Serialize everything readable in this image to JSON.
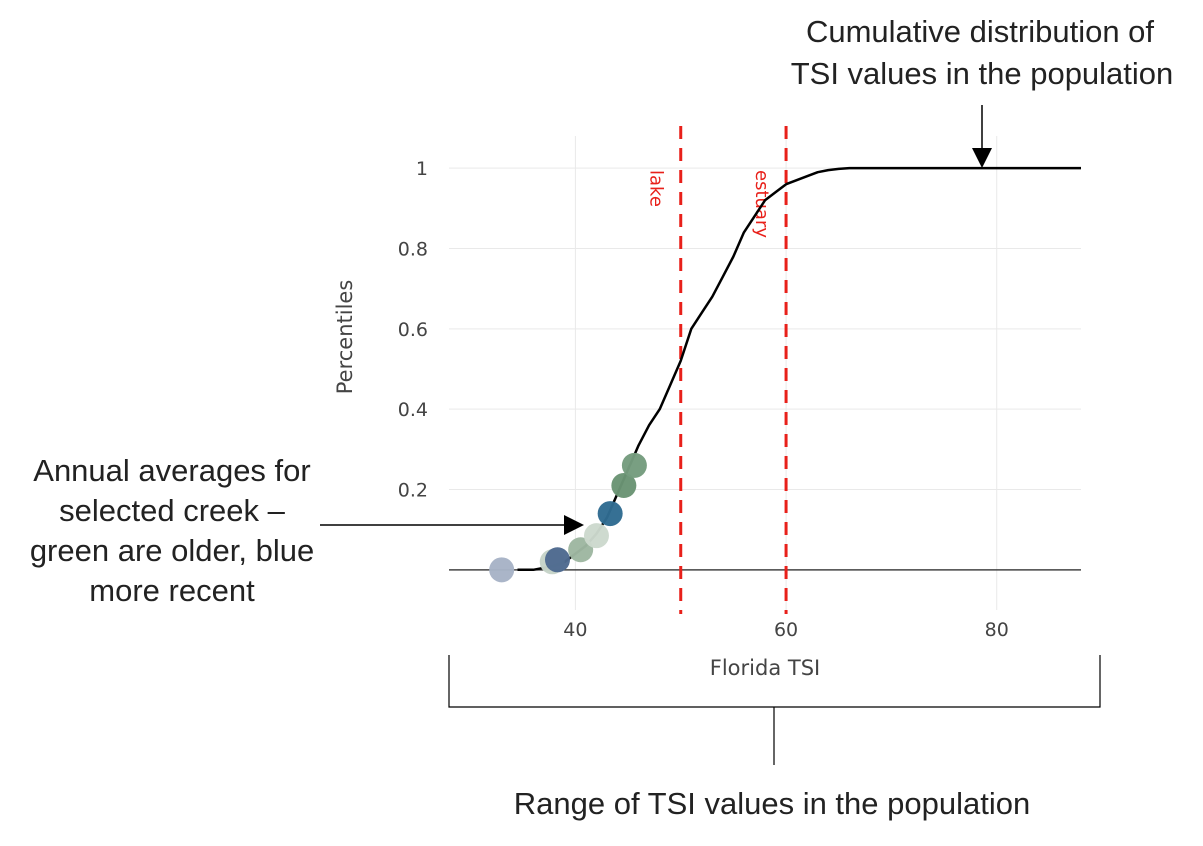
{
  "chart_data": {
    "type": "line",
    "title": "",
    "xlabel": "Florida TSI",
    "ylabel": "Percentiles",
    "xlim": [
      28,
      88
    ],
    "ylim": [
      -0.1,
      1.08
    ],
    "x_ticks": [
      {
        "value": 40,
        "label": "40"
      },
      {
        "value": 60,
        "label": "60"
      },
      {
        "value": 80,
        "label": "80"
      }
    ],
    "y_ticks": [
      {
        "value": 0.2,
        "label": "0.2"
      },
      {
        "value": 0.4,
        "label": "0.4"
      },
      {
        "value": 0.6,
        "label": "0.6"
      },
      {
        "value": 0.8,
        "label": "0.8"
      },
      {
        "value": 1,
        "label": "1"
      }
    ],
    "grid": true,
    "zero_line": true,
    "series": [
      {
        "kind": "line",
        "color": "#000000",
        "x": [
          34.5,
          36,
          37,
          38,
          39,
          40,
          41,
          42,
          43,
          44,
          45,
          46,
          47,
          48,
          49,
          50,
          51,
          52,
          53,
          54,
          55,
          56,
          57,
          58,
          59,
          60,
          61,
          62,
          63,
          64,
          65,
          66,
          70,
          75,
          80,
          85,
          88
        ],
        "y": [
          0.0,
          0.0,
          0.005,
          0.01,
          0.02,
          0.04,
          0.06,
          0.09,
          0.13,
          0.19,
          0.25,
          0.31,
          0.36,
          0.4,
          0.46,
          0.52,
          0.6,
          0.64,
          0.68,
          0.73,
          0.78,
          0.84,
          0.88,
          0.92,
          0.94,
          0.96,
          0.97,
          0.98,
          0.99,
          0.995,
          0.998,
          1.0,
          1.0,
          1.0,
          1.0,
          1.0,
          1.0
        ]
      },
      {
        "kind": "scatter",
        "note_colors": "green are older, blue more recent",
        "points": [
          {
            "x": 33.0,
            "y": 0.0,
            "color": "#a7b3c6"
          },
          {
            "x": 37.8,
            "y": 0.02,
            "color": "#c6d4c8"
          },
          {
            "x": 38.3,
            "y": 0.025,
            "color": "#4e6a8f"
          },
          {
            "x": 40.5,
            "y": 0.05,
            "color": "#9eb7a1"
          },
          {
            "x": 42.0,
            "y": 0.085,
            "color": "#ccd9cd"
          },
          {
            "x": 43.3,
            "y": 0.14,
            "color": "#2f6b91"
          },
          {
            "x": 44.6,
            "y": 0.21,
            "color": "#6a9474"
          },
          {
            "x": 45.6,
            "y": 0.26,
            "color": "#759c7e"
          }
        ]
      }
    ],
    "vlines": [
      {
        "x": 50,
        "label": "lake",
        "color": "#e8201a"
      },
      {
        "x": 60,
        "label": "estuary",
        "color": "#e8201a"
      }
    ],
    "annotations": {
      "top_right": [
        "Cumulative distribution of",
        "TSI values in the population"
      ],
      "left": [
        "Annual averages for",
        "selected creek –",
        "green are older, blue",
        "more recent"
      ],
      "bottom": "Range of TSI values in the population"
    }
  }
}
